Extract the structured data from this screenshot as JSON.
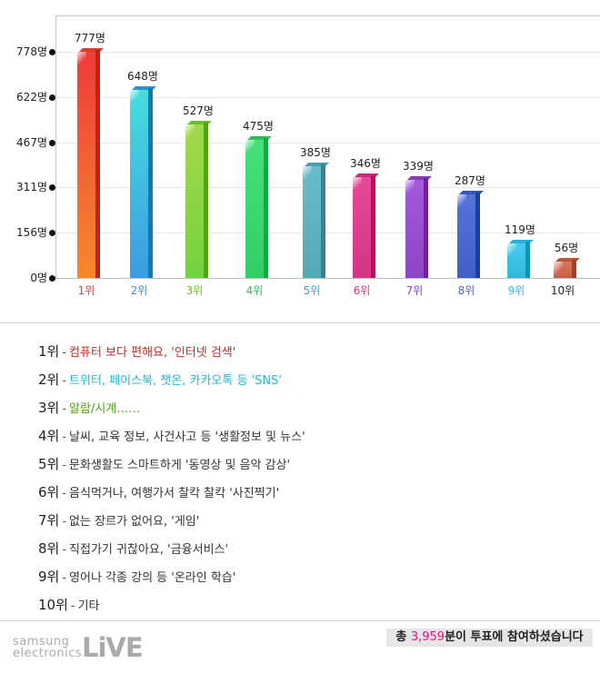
{
  "chart_data": {
    "type": "bar",
    "title": "",
    "xlabel": "",
    "ylabel": "",
    "categories": [
      "1위",
      "2위",
      "3위",
      "4위",
      "5위",
      "6위",
      "7위",
      "8위",
      "9위",
      "10위"
    ],
    "values": [
      777,
      648,
      527,
      475,
      385,
      346,
      339,
      287,
      119,
      56
    ],
    "value_labels": [
      "777명",
      "648명",
      "527명",
      "475명",
      "385명",
      "346명",
      "339명",
      "287명",
      "119명",
      "56명"
    ],
    "yticks": [
      "0명",
      "156명",
      "311명",
      "467명",
      "622명",
      "778명"
    ],
    "ytick_values": [
      0,
      156,
      311,
      467,
      622,
      778
    ],
    "ylim": [
      0,
      778
    ],
    "grid": true,
    "bar_colors": [
      "#f0503a",
      "#3fa6df",
      "#7bd43f",
      "#3ed670",
      "#5fb3c0",
      "#dd3f8c",
      "#9a4fd0",
      "#4a6ad0",
      "#3cc2e6",
      "#d06b50"
    ],
    "xlabel_colors": [
      "#e8383f",
      "#3e8ee0",
      "#6cbf2e",
      "#2ec25a",
      "#3aa9c0",
      "#d9327e",
      "#8a44c8",
      "#4d63cf",
      "#37bde3",
      "#222222"
    ]
  },
  "legend": [
    {
      "rank": "1위",
      "text": "컴퓨터 보다 편해요, '인터넷 검색'",
      "color": "#d2261b"
    },
    {
      "rank": "2위",
      "text": "트위터, 페이스북, 챗온, 카카오톡 등 'SNS'",
      "color": "#25b6d2"
    },
    {
      "rank": "3위",
      "text": "알람/시계……",
      "color": "#4ea317"
    },
    {
      "rank": "4위",
      "text": "날씨, 교육 정보, 사건사고 등 '생활정보 및 뉴스'",
      "color": "#333333"
    },
    {
      "rank": "5위",
      "text": "문화생활도 스마트하게 '동영상 및 음악 감상'",
      "color": "#333333"
    },
    {
      "rank": "6위",
      "text": "음식먹거나, 여행가서 찰칵 찰칵 '사진찍기'",
      "color": "#333333"
    },
    {
      "rank": "7위",
      "text": "없는 장르가 없어요, '게임'",
      "color": "#333333"
    },
    {
      "rank": "8위",
      "text": "직접가기 귀찮아요, '금융서비스'",
      "color": "#333333"
    },
    {
      "rank": "9위",
      "text": "영어나 각종 강의 등 '온라인 학습'",
      "color": "#333333"
    },
    {
      "rank": "10위",
      "text": "기타",
      "color": "#333333"
    }
  ],
  "legend_dash": "-",
  "footer": {
    "logo_line1": "samsung",
    "logo_line2": "electronics",
    "logo_brand": "LiVE",
    "total_prefix": "총 ",
    "total_number": "3,959",
    "total_suffix": "분이 투표에 참여하셨습니다"
  }
}
